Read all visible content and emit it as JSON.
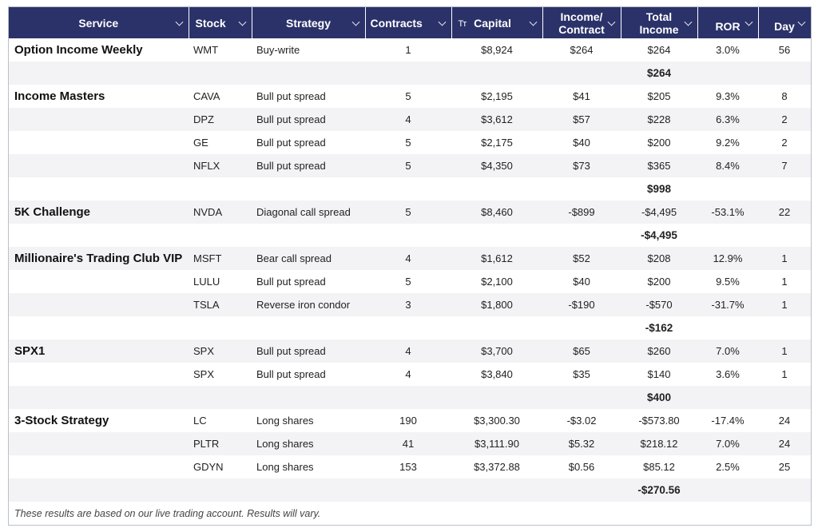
{
  "headers": {
    "service": "Service",
    "stock": "Stock",
    "strategy": "Strategy",
    "contracts": "Contracts",
    "capital": "Capital",
    "income_contract_1": "Income/",
    "income_contract_2": "Contract",
    "total_income_1": "Total",
    "total_income_2": "Income",
    "ror": "ROR",
    "day": "Day",
    "text_type_icon": "Tт"
  },
  "rows": [
    {
      "service": "Option Income Weekly",
      "stock": "WMT",
      "strategy": "Buy-write",
      "contracts": "1",
      "capital": "$8,924",
      "income_contract": "$264",
      "total_income": "$264",
      "ror": "3.0%",
      "day": "56"
    },
    {
      "subtotal": "$264"
    },
    {
      "service": "Income Masters",
      "stock": "CAVA",
      "strategy": "Bull put spread",
      "contracts": "5",
      "capital": "$2,195",
      "income_contract": "$41",
      "total_income": "$205",
      "ror": "9.3%",
      "day": "8"
    },
    {
      "service": "",
      "stock": "DPZ",
      "strategy": "Bull put spread",
      "contracts": "4",
      "capital": "$3,612",
      "income_contract": "$57",
      "total_income": "$228",
      "ror": "6.3%",
      "day": "2"
    },
    {
      "service": "",
      "stock": "GE",
      "strategy": "Bull put spread",
      "contracts": "5",
      "capital": "$2,175",
      "income_contract": "$40",
      "total_income": "$200",
      "ror": "9.2%",
      "day": "2"
    },
    {
      "service": "",
      "stock": "NFLX",
      "strategy": "Bull put spread",
      "contracts": "5",
      "capital": "$4,350",
      "income_contract": "$73",
      "total_income": "$365",
      "ror": "8.4%",
      "day": "7"
    },
    {
      "subtotal": "$998"
    },
    {
      "service": "5K Challenge",
      "stock": "NVDA",
      "strategy": "Diagonal call spread",
      "contracts": "5",
      "capital": "$8,460",
      "income_contract": "-$899",
      "total_income": "-$4,495",
      "ror": "-53.1%",
      "day": "22"
    },
    {
      "subtotal": "-$4,495"
    },
    {
      "service": "Millionaire's Trading Club VIP",
      "stock": "MSFT",
      "strategy": "Bear call spread",
      "contracts": "4",
      "capital": "$1,612",
      "income_contract": "$52",
      "total_income": "$208",
      "ror": "12.9%",
      "day": "1"
    },
    {
      "service": "",
      "stock": "LULU",
      "strategy": "Bull put spread",
      "contracts": "5",
      "capital": "$2,100",
      "income_contract": "$40",
      "total_income": "$200",
      "ror": "9.5%",
      "day": "1"
    },
    {
      "service": "",
      "stock": "TSLA",
      "strategy": "Reverse iron condor",
      "contracts": "3",
      "capital": "$1,800",
      "income_contract": "-$190",
      "total_income": "-$570",
      "ror": "-31.7%",
      "day": "1"
    },
    {
      "subtotal": "-$162"
    },
    {
      "service": "SPX1",
      "stock": "SPX",
      "strategy": "Bull put spread",
      "contracts": "4",
      "capital": "$3,700",
      "income_contract": "$65",
      "total_income": "$260",
      "ror": "7.0%",
      "day": "1"
    },
    {
      "service": "",
      "stock": "SPX",
      "strategy": "Bull put spread",
      "contracts": "4",
      "capital": "$3,840",
      "income_contract": "$35",
      "total_income": "$140",
      "ror": "3.6%",
      "day": "1"
    },
    {
      "subtotal": "$400"
    },
    {
      "service": "3-Stock Strategy",
      "stock": "LC",
      "strategy": "Long shares",
      "contracts": "190",
      "capital": "$3,300.30",
      "income_contract": "-$3.02",
      "total_income": "-$573.80",
      "ror": "-17.4%",
      "day": "24"
    },
    {
      "service": "",
      "stock": "PLTR",
      "strategy": "Long shares",
      "contracts": "41",
      "capital": "$3,111.90",
      "income_contract": "$5.32",
      "total_income": "$218.12",
      "ror": "7.0%",
      "day": "24"
    },
    {
      "service": "",
      "stock": "GDYN",
      "strategy": "Long shares",
      "contracts": "153",
      "capital": "$3,372.88",
      "income_contract": "$0.56",
      "total_income": "$85.12",
      "ror": "2.5%",
      "day": "25"
    },
    {
      "subtotal": "-$270.56"
    }
  ],
  "footer": "These results are based on our live trading account. Results will vary.",
  "colors": {
    "header_bg": "#2b3269",
    "header_text": "#ffffff",
    "stripe": "#f3f3f5"
  },
  "icons": {
    "sort": "chevron-down-icon",
    "text_type": "text-type-icon"
  }
}
